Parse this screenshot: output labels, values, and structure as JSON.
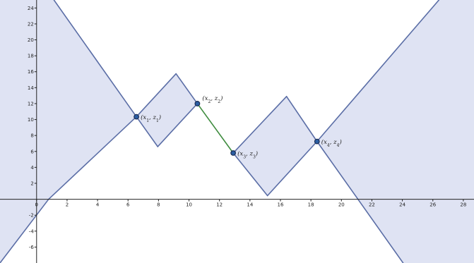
{
  "chart_data": {
    "type": "diagram",
    "axes": {
      "x_range": [
        -2.4,
        28.7
      ],
      "y_range": [
        -8,
        25
      ],
      "x_ticks": [
        0,
        2,
        4,
        6,
        8,
        10,
        12,
        14,
        16,
        18,
        20,
        22,
        24,
        26,
        28
      ],
      "y_ticks": [
        -6,
        -4,
        -2,
        2,
        4,
        6,
        8,
        10,
        12,
        14,
        16,
        18,
        20,
        22,
        24
      ],
      "grid": false
    },
    "colors": {
      "region_fill": "#dfe3f3",
      "region_edge": "#5b6ea6",
      "segment": "#3f8c3f",
      "point_fill": "#2b5ea3",
      "point_edge": "#1a2d55",
      "axis": "#222222"
    },
    "regions": [
      {
        "vertices": [
          [
            -2.4,
            25
          ],
          [
            1.14,
            25
          ],
          [
            6.55,
            10.35
          ],
          [
            0.79,
            0
          ],
          [
            -2.4,
            -8
          ]
        ]
      },
      {
        "vertices": [
          [
            6.55,
            10.35
          ],
          [
            9.15,
            15.75
          ],
          [
            10.55,
            12.0
          ],
          [
            7.95,
            6.6
          ]
        ]
      },
      {
        "vertices": [
          [
            12.9,
            5.8
          ],
          [
            16.4,
            12.9
          ],
          [
            18.4,
            7.25
          ],
          [
            15.15,
            0.45
          ]
        ]
      },
      {
        "vertices": [
          [
            18.4,
            7.25
          ],
          [
            26.4,
            25
          ],
          [
            28.7,
            25
          ],
          [
            28.7,
            -8
          ],
          [
            24.05,
            -8
          ]
        ]
      }
    ],
    "segment": {
      "from": [
        10.55,
        12.0
      ],
      "to": [
        12.9,
        5.8
      ]
    },
    "points": [
      {
        "label": "(x_1, z_1)",
        "x": 6.55,
        "y": 10.35
      },
      {
        "label": "(x_2, z_2)",
        "x": 10.55,
        "y": 12.0
      },
      {
        "label": "(x_3, z_3)",
        "x": 12.9,
        "y": 5.8
      },
      {
        "label": "(x_4, z_4)",
        "x": 18.4,
        "y": 7.25
      }
    ]
  }
}
